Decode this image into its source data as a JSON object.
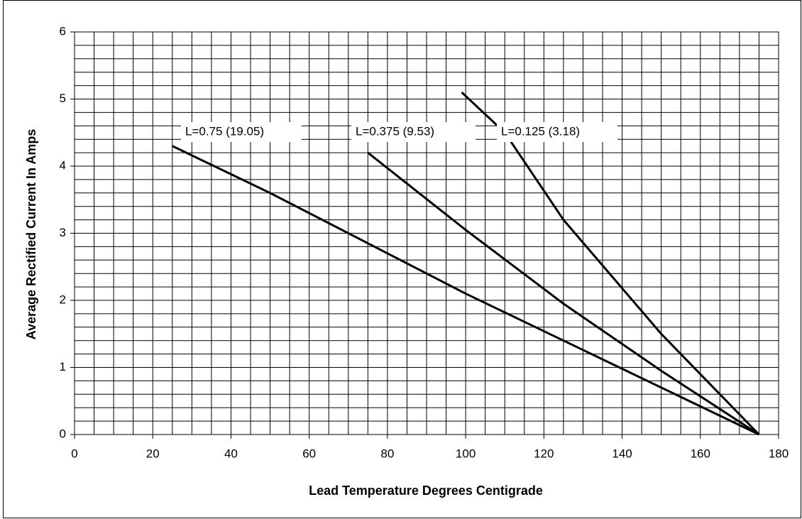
{
  "chart_data": {
    "type": "line",
    "xlabel": "Lead Temperature Degrees Centigrade",
    "ylabel": "Average Rectified Current In Amps",
    "xlim": [
      0,
      180
    ],
    "xticks": [
      0,
      20,
      40,
      60,
      80,
      100,
      120,
      140,
      160,
      180
    ],
    "ylim": [
      0,
      6
    ],
    "yticks": [
      0,
      1,
      2,
      3,
      4,
      5,
      6
    ],
    "x_minor_ticks": [
      0,
      5,
      10,
      15,
      20,
      25,
      30,
      35,
      40,
      45,
      50,
      55,
      60,
      65,
      70,
      75,
      80,
      85,
      90,
      95,
      100,
      105,
      110,
      115,
      120,
      125,
      130,
      135,
      140,
      145,
      150,
      155,
      160,
      165,
      170,
      175,
      180
    ],
    "y_minor_ticks": [
      0,
      0.2,
      0.4,
      0.6,
      0.8,
      1,
      1.2,
      1.4,
      1.6,
      1.8,
      2,
      2.2,
      2.4,
      2.6,
      2.8,
      3,
      3.2,
      3.4,
      3.6,
      3.8,
      4,
      4.2,
      4.4,
      4.6,
      4.8,
      5,
      5.2,
      5.4,
      5.6,
      5.8,
      6
    ],
    "grid": true,
    "series": [
      {
        "name": "L=0.75 (19.05)",
        "color": "#000000",
        "x": [
          25,
          50,
          75,
          100,
          125,
          150,
          175
        ],
        "values": [
          4.3,
          3.6,
          2.85,
          2.1,
          1.4,
          0.7,
          0
        ]
      },
      {
        "name": "L=0.375 (9.53)",
        "color": "#000000",
        "x": [
          75,
          100,
          125,
          150,
          175
        ],
        "values": [
          4.2,
          3.05,
          1.95,
          0.95,
          0
        ]
      },
      {
        "name": "L=0.125 (3.18)",
        "color": "#000000",
        "x": [
          99,
          110,
          125,
          150,
          175
        ],
        "values": [
          5.1,
          4.5,
          3.2,
          1.5,
          0
        ]
      }
    ]
  }
}
